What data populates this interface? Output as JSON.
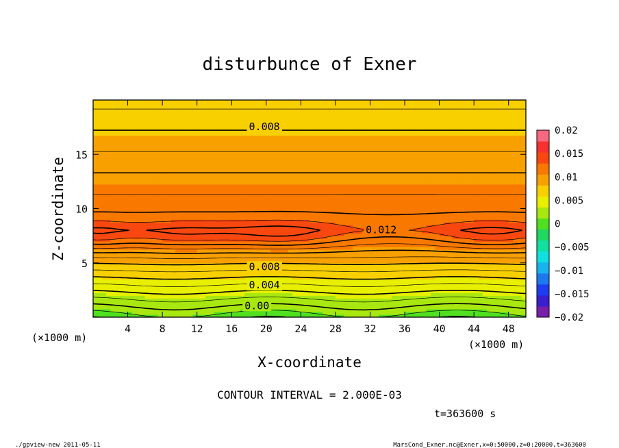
{
  "chart_data": {
    "type": "heatmap",
    "title": "disturbunce of Exner",
    "xlabel": "X-coordinate",
    "ylabel": "Z-coordinate",
    "x_unit_left": "(×1000 m)",
    "x_unit_right": "(×1000 m)",
    "xlim": [
      0,
      50
    ],
    "ylim": [
      0,
      20
    ],
    "x_ticks": [
      4,
      8,
      12,
      16,
      20,
      24,
      28,
      32,
      36,
      40,
      44,
      48
    ],
    "y_ticks": [
      5,
      10,
      15
    ],
    "colorbar": {
      "range": [
        -0.02,
        0.02
      ],
      "tick_values": [
        0.02,
        0.015,
        0.01,
        0.005,
        0,
        -0.005,
        -0.01,
        -0.015,
        -0.02
      ],
      "tick_labels": [
        "0.02",
        "0.015",
        "0.01",
        "0.005",
        "0",
        "−0.005",
        "−0.01",
        "−0.015",
        "−0.02"
      ]
    },
    "contour_interval": "CONTOUR INTERVAL = 2.000E-03",
    "contour_labels": [
      {
        "text": "0.008",
        "x": 18,
        "z": 17.3
      },
      {
        "text": "0.012",
        "x": 31.5,
        "z": 7.8
      },
      {
        "text": "0.008",
        "x": 18,
        "z": 4.4
      },
      {
        "text": "0.004",
        "x": 18,
        "z": 2.7
      },
      {
        "text": "0.00",
        "x": 17.5,
        "z": 0.8
      }
    ],
    "time_label": "t=363600 s",
    "grid": false,
    "legend": "right"
  },
  "footer": {
    "left": "./gpview-new  2011-05-11",
    "right": "MarsCond_Exner.nc@Exner,x=0:50000,z=0:20000,t=363600"
  },
  "colors": {
    "frame": "#000000",
    "background": "#ffffff"
  }
}
